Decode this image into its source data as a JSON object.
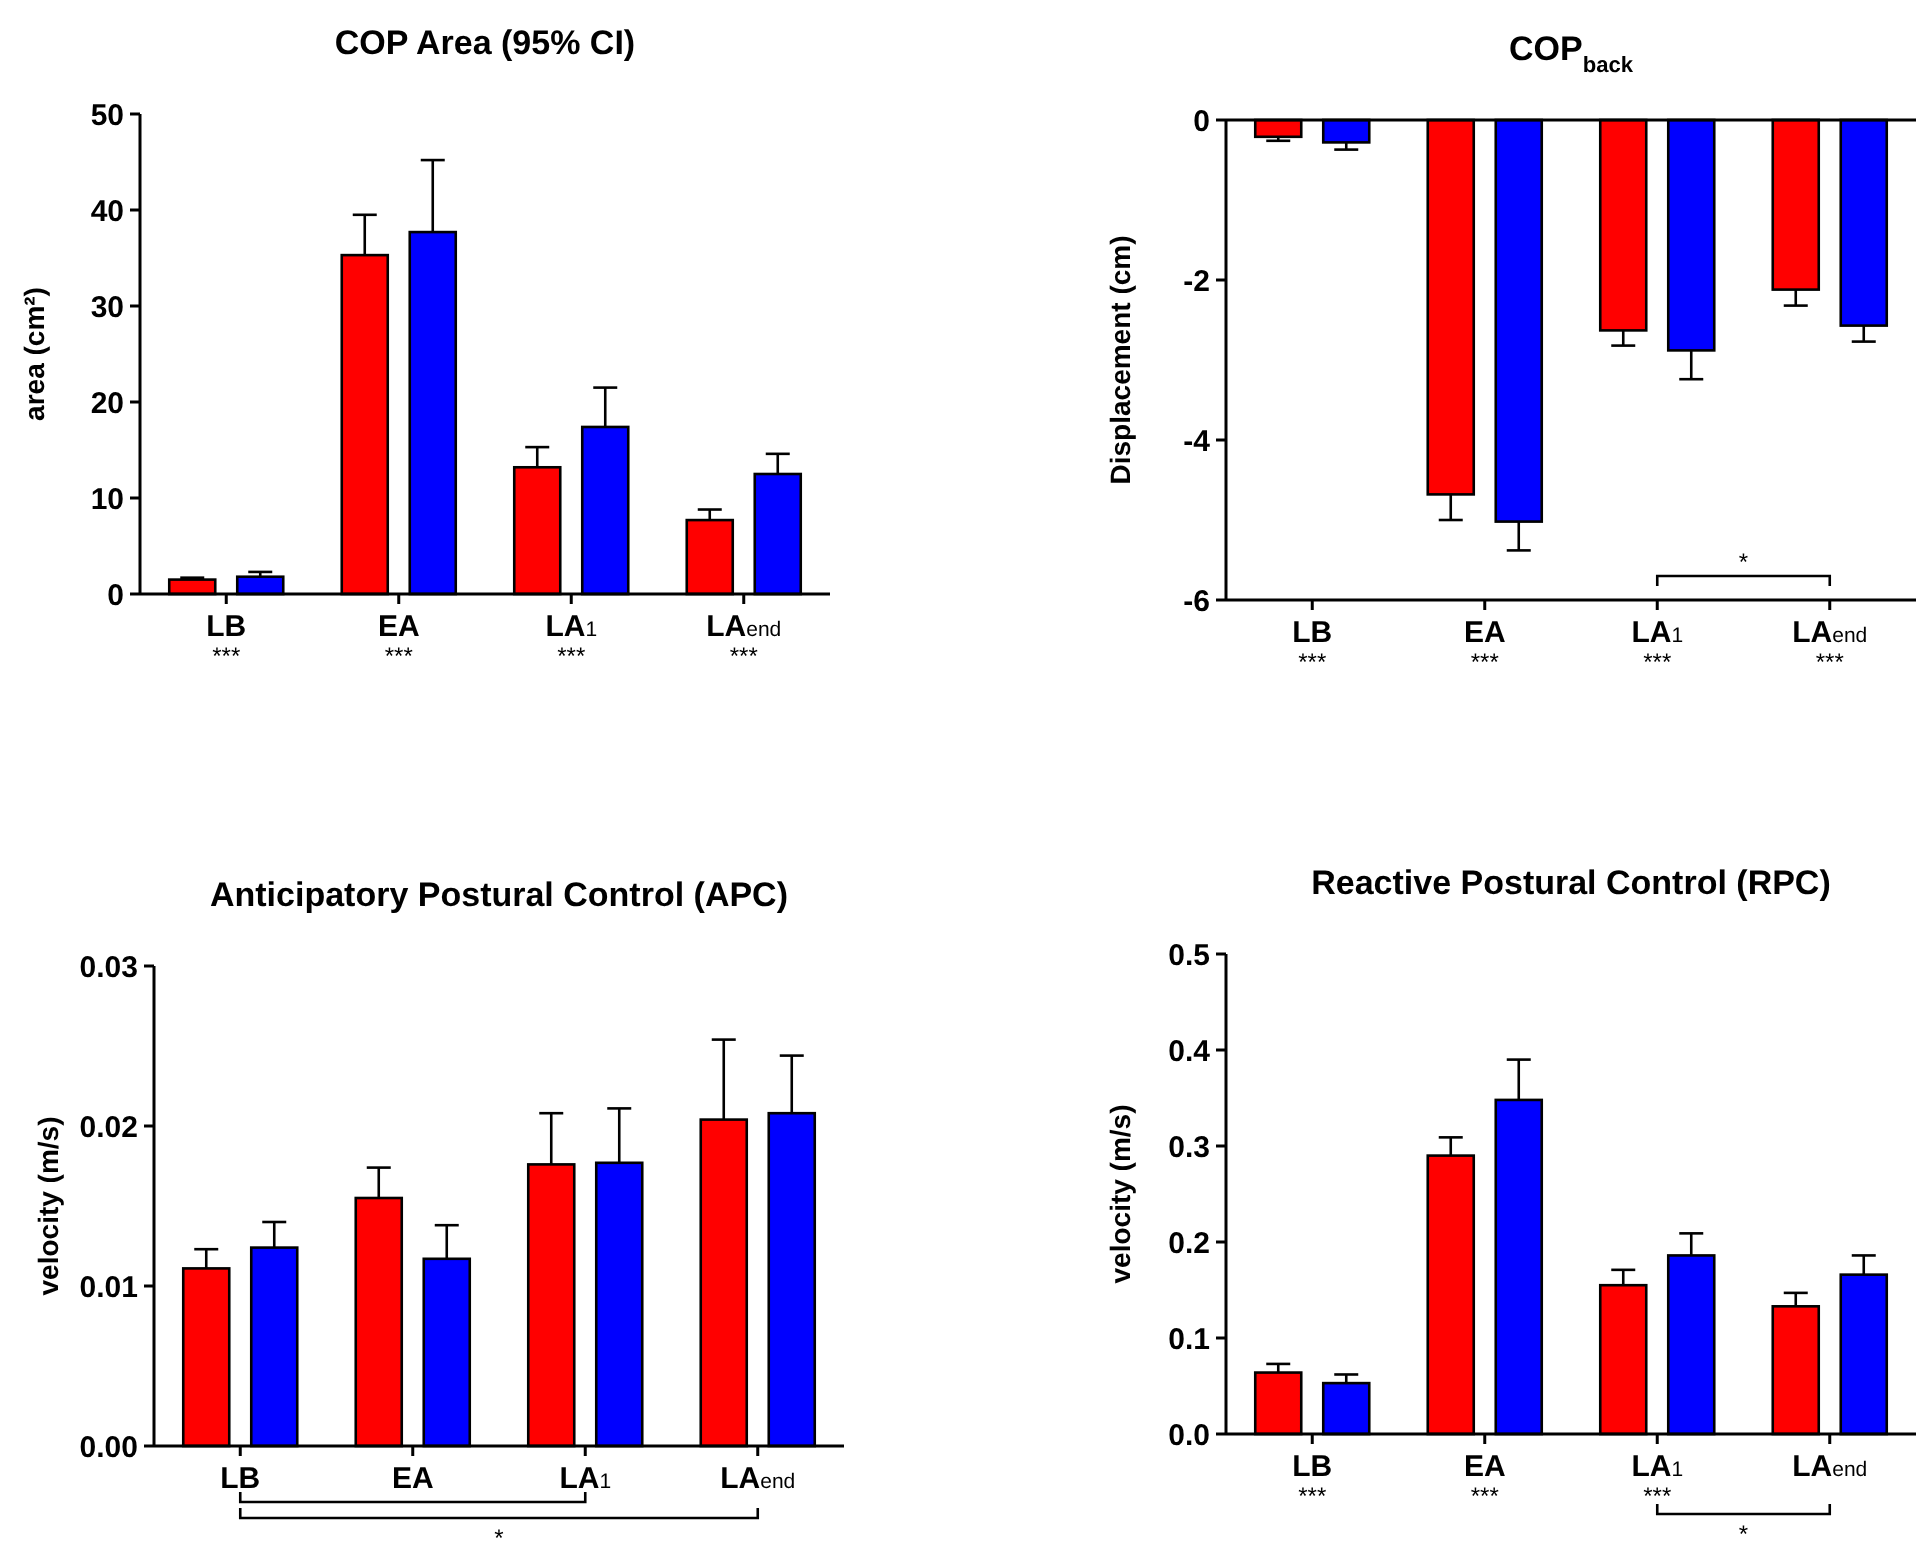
{
  "chart_data": [
    {
      "type": "bar",
      "title": "COP Area (95% CI)",
      "ylabel": "area (cm²)",
      "categories": [
        "LB",
        "EA",
        "LA$_{1}$",
        "LA$_{end}$"
      ],
      "ylim": [
        0,
        50
      ],
      "yticks": [
        0,
        10,
        20,
        30,
        40,
        50
      ],
      "grid": false,
      "series": [
        {
          "color": "#ff0000",
          "values": [
            1.5,
            35.3,
            13.2,
            7.7
          ],
          "errors": [
            [
              1.5,
              1.7
            ],
            [
              35.3,
              39.5
            ],
            [
              13.2,
              15.3
            ],
            [
              7.7,
              8.8
            ]
          ]
        },
        {
          "color": "#0000ff",
          "values": [
            1.8,
            37.7,
            17.4,
            12.5
          ],
          "errors": [
            [
              1.8,
              2.3
            ],
            [
              37.7,
              45.2
            ],
            [
              17.4,
              21.5
            ],
            [
              12.5,
              14.6
            ]
          ]
        }
      ],
      "annotations": [
        "***",
        "***",
        "***",
        "***"
      ]
    },
    {
      "type": "bar",
      "title": "COP$_{back}$",
      "ylabel": "Displacement (cm)",
      "categories": [
        "LB",
        "EA",
        "LA$_{1}$",
        "LA$_{end}$"
      ],
      "ylim": [
        -6,
        0
      ],
      "yticks": [
        -6,
        -4,
        -2,
        0
      ],
      "grid": false,
      "series": [
        {
          "color": "#ff0000",
          "values": [
            -0.21,
            -4.68,
            -2.63,
            -2.12
          ],
          "errors": [
            [
              -0.26,
              -0.21
            ],
            [
              -5.0,
              -4.68
            ],
            [
              -2.82,
              -2.63
            ],
            [
              -2.32,
              -2.12
            ]
          ]
        },
        {
          "color": "#0000ff",
          "values": [
            -0.28,
            -5.02,
            -2.88,
            -2.57
          ],
          "errors": [
            [
              -0.37,
              -0.28
            ],
            [
              -5.38,
              -5.02
            ],
            [
              -3.24,
              -2.88
            ],
            [
              -2.77,
              -2.57
            ]
          ]
        }
      ],
      "annotations": [
        "***",
        "***",
        "***",
        "***",
        "*"
      ]
    },
    {
      "type": "bar",
      "title": "Anticipatory Postural Control (APC)",
      "ylabel": "velocity (m/s)",
      "categories": [
        "LB",
        "EA",
        "LA$_{1}$",
        "LA$_{end}$"
      ],
      "ylim": [
        0,
        0.03
      ],
      "yticks": [
        {
          "value": 0,
          "label": "0.00"
        },
        {
          "value": 0.01,
          "label": "0.01"
        },
        {
          "value": 0.02,
          "label": "0.02"
        },
        {
          "value": 0.03,
          "label": "0.03"
        }
      ],
      "grid": false,
      "series": [
        {
          "color": "#ff0000",
          "values": [
            0.0111,
            0.0155,
            0.0176,
            0.0204
          ],
          "errors": [
            [
              0.0111,
              0.0123
            ],
            [
              0.0155,
              0.0174
            ],
            [
              0.0176,
              0.0208
            ],
            [
              0.0204,
              0.0254
            ]
          ]
        },
        {
          "color": "#0000ff",
          "values": [
            0.0124,
            0.0117,
            0.0177,
            0.0208
          ],
          "errors": [
            [
              0.0124,
              0.014
            ],
            [
              0.0117,
              0.0138
            ],
            [
              0.0177,
              0.0211
            ],
            [
              0.0208,
              0.0244
            ]
          ]
        }
      ],
      "annotations": [
        "*"
      ]
    },
    {
      "type": "bar",
      "title": "Reactive Postural Control (RPC)",
      "ylabel": "velocity (m/s)",
      "categories": [
        "LB",
        "EA",
        "LA$_{1}$",
        "LA$_{end}$"
      ],
      "ylim": [
        0,
        0.5
      ],
      "yticks": [
        {
          "value": 0,
          "label": "0.0"
        },
        {
          "value": 0.1,
          "label": "0.1"
        },
        {
          "value": 0.2,
          "label": "0.2"
        },
        {
          "value": 0.3,
          "label": "0.3"
        },
        {
          "value": 0.4,
          "label": "0.4"
        },
        {
          "value": 0.5,
          "label": "0.5"
        }
      ],
      "grid": false,
      "series": [
        {
          "color": "#ff0000",
          "values": [
            0.064,
            0.29,
            0.155,
            0.133
          ],
          "errors": [
            [
              0.064,
              0.073
            ],
            [
              0.29,
              0.309
            ],
            [
              0.155,
              0.171
            ],
            [
              0.133,
              0.147
            ]
          ]
        },
        {
          "color": "#0000ff",
          "values": [
            0.053,
            0.348,
            0.186,
            0.166
          ],
          "errors": [
            [
              0.053,
              0.062
            ],
            [
              0.348,
              0.39
            ],
            [
              0.186,
              0.209
            ],
            [
              0.166,
              0.186
            ]
          ]
        }
      ],
      "annotations": [
        "***",
        "***",
        "***",
        "*"
      ]
    }
  ]
}
